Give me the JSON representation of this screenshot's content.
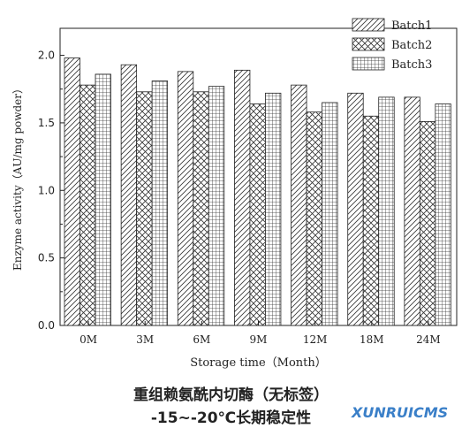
{
  "chart_data": {
    "type": "bar",
    "title": "",
    "xlabel": "Storage time（Month）",
    "ylabel": "Enzyme activity（AU/mg powder）",
    "ylim": [
      0,
      2.2
    ],
    "yticks": [
      "0.0",
      "0.5",
      "1.0",
      "1.5",
      "2.0"
    ],
    "categories": [
      "0M",
      "3M",
      "6M",
      "9M",
      "12M",
      "18M",
      "24M"
    ],
    "legend_position": "top-right",
    "grid": false,
    "series": [
      {
        "name": "Batch1",
        "pattern": "diagonal-hatch",
        "values": [
          1.98,
          1.93,
          1.88,
          1.89,
          1.78,
          1.72,
          1.69
        ]
      },
      {
        "name": "Batch2",
        "pattern": "cross-hatch",
        "values": [
          1.78,
          1.73,
          1.73,
          1.64,
          1.58,
          1.55,
          1.51
        ]
      },
      {
        "name": "Batch3",
        "pattern": "grid",
        "values": [
          1.86,
          1.81,
          1.77,
          1.72,
          1.65,
          1.69,
          1.64
        ]
      }
    ]
  },
  "caption": {
    "line1": "重组赖氨酰内切酶（无标签）",
    "line2": "-15~-20℃长期稳定性"
  },
  "watermark": {
    "text": "XUNRUICMS",
    "color": "#3a7fc8"
  }
}
